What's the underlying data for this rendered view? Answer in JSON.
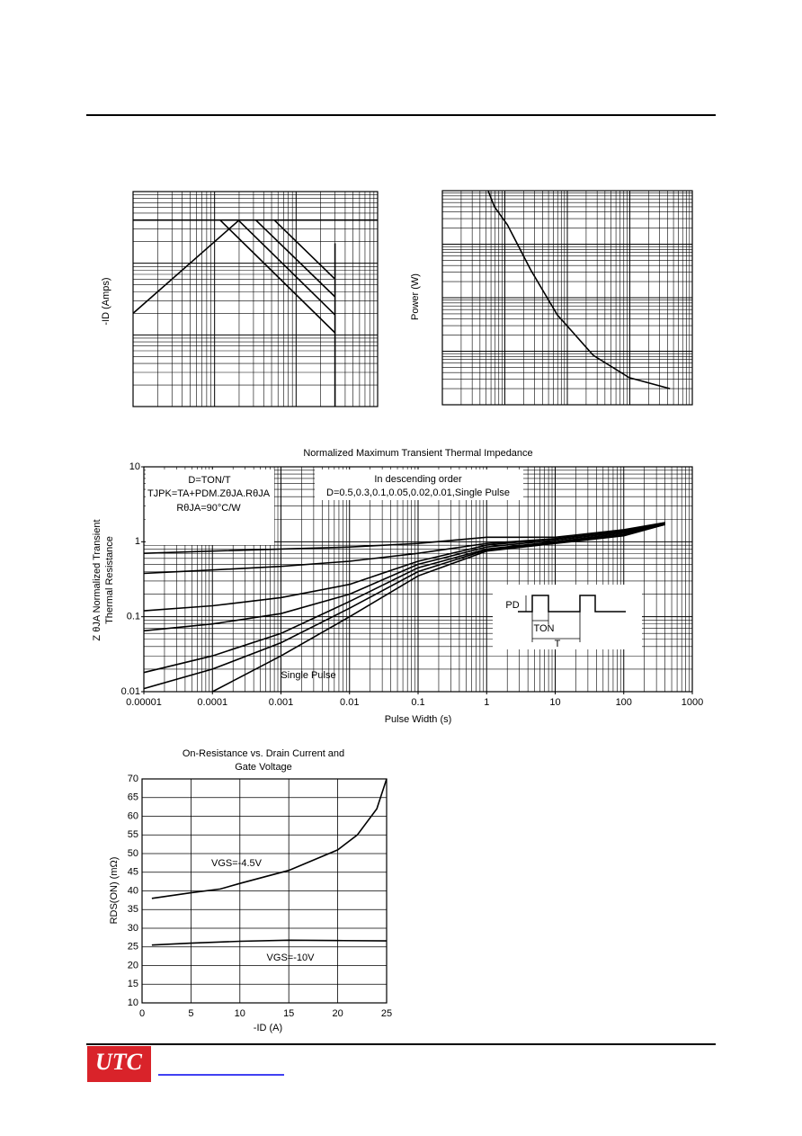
{
  "chart_data": [
    {
      "type": "line",
      "ylabel": "-ID (Amps)",
      "xlog": true,
      "ylog": true,
      "xlim": [
        0.1,
        100
      ],
      "ylim": [
        0.1,
        100
      ],
      "grid": true,
      "series": [
        {
          "color": "#000000",
          "x": [
            0.1,
            100
          ],
          "values": [
            40,
            40
          ]
        },
        {
          "color": "#000000",
          "x": [
            0.1,
            2
          ],
          "values": [
            2,
            40
          ]
        },
        {
          "color": "#000000",
          "x": [
            1.17,
            30
          ],
          "values": [
            40,
            1.07
          ]
        },
        {
          "color": "#000000",
          "x": [
            1.95,
            30
          ],
          "values": [
            40,
            1.9
          ]
        },
        {
          "color": "#000000",
          "x": [
            3.2,
            30
          ],
          "values": [
            40,
            3.4
          ]
        },
        {
          "color": "#000000",
          "x": [
            5.4,
            30
          ],
          "values": [
            40,
            6
          ]
        },
        {
          "color": "#000000",
          "x": [
            30,
            30
          ],
          "values": [
            0.1,
            19
          ]
        }
      ]
    },
    {
      "type": "line",
      "ylabel": "Power (W)",
      "xlog": true,
      "ylog": true,
      "xlim": [
        0.0001,
        1
      ],
      "ylim": [
        1,
        10000
      ],
      "grid": true,
      "series": [
        {
          "color": "#000000",
          "x": [
            0.00054,
            0.00068,
            0.0011,
            0.0026,
            0.0069,
            0.026,
            0.098,
            0.44
          ],
          "values": [
            10000,
            5000,
            2300,
            330,
            48,
            8.4,
            3.2,
            2.0
          ]
        }
      ]
    },
    {
      "type": "line",
      "title": [
        "Normalized Maximum Transient Thermal Impedance"
      ],
      "xlabel": "Pulse Width (s)",
      "ylabel": [
        "Z θJA Normalized Transient",
        "Thermal Resistance"
      ],
      "xlog": true,
      "ylog": true,
      "xlim": [
        1e-05,
        1000
      ],
      "ylim": [
        0.01,
        10
      ],
      "xticks": [
        1e-05,
        0.0001,
        0.001,
        0.01,
        0.1,
        1,
        10,
        100,
        1000
      ],
      "yticks": [
        0.01,
        0.1,
        1,
        10
      ],
      "grid": true,
      "annotations": [
        "D=TON/T",
        "TJPK=TA+PDM.ZθJA.RθJA",
        "RθJA=90°C/W",
        "In descending order",
        "D=0.5,0.3,0.1,0.05,0.02,0.01,Single Pulse",
        "Single Pulse",
        "PD",
        "TON",
        "T"
      ],
      "series": [
        {
          "color": "#000000",
          "x": [
            1e-05,
            0.0001,
            0.001,
            0.01,
            0.1,
            1,
            10,
            100,
            400
          ],
          "values": [
            0.7,
            0.75,
            0.8,
            0.85,
            0.95,
            1.15,
            1.15,
            1.45,
            1.8
          ]
        },
        {
          "color": "#000000",
          "x": [
            1e-05,
            0.0001,
            0.001,
            0.01,
            0.1,
            1,
            10,
            100,
            400
          ],
          "values": [
            0.38,
            0.42,
            0.47,
            0.55,
            0.7,
            0.95,
            1.1,
            1.4,
            1.8
          ]
        },
        {
          "color": "#000000",
          "x": [
            1e-05,
            0.0001,
            0.001,
            0.01,
            0.1,
            1,
            10,
            100,
            400
          ],
          "values": [
            0.12,
            0.14,
            0.18,
            0.27,
            0.55,
            0.9,
            1.1,
            1.4,
            1.75
          ]
        },
        {
          "color": "#000000",
          "x": [
            1e-05,
            0.0001,
            0.001,
            0.01,
            0.1,
            1,
            10,
            100,
            400
          ],
          "values": [
            0.065,
            0.08,
            0.11,
            0.2,
            0.5,
            0.85,
            1.05,
            1.35,
            1.75
          ]
        },
        {
          "color": "#000000",
          "x": [
            1e-05,
            0.0001,
            0.001,
            0.01,
            0.1,
            1,
            10,
            100,
            400
          ],
          "values": [
            0.018,
            0.03,
            0.06,
            0.16,
            0.45,
            0.8,
            1.0,
            1.3,
            1.7
          ]
        },
        {
          "color": "#000000",
          "x": [
            1e-05,
            0.0001,
            0.001,
            0.01,
            0.1,
            1,
            10,
            100,
            400
          ],
          "values": [
            0.011,
            0.02,
            0.045,
            0.13,
            0.4,
            0.78,
            0.97,
            1.25,
            1.7
          ]
        },
        {
          "color": "#000000",
          "x": [
            0.0001,
            0.001,
            0.01,
            0.1,
            1,
            10,
            100,
            400
          ],
          "values": [
            0.01,
            0.03,
            0.1,
            0.35,
            0.75,
            0.95,
            1.2,
            1.7
          ]
        }
      ]
    },
    {
      "type": "line",
      "title": [
        "On-Resistance vs. Drain Current and",
        "Gate Voltage"
      ],
      "xlabel": "-ID (A)",
      "ylabel": [
        "RDS(ON) (mΩ)"
      ],
      "xlim": [
        0,
        25
      ],
      "ylim": [
        10,
        70
      ],
      "xticks": [
        0,
        5,
        10,
        15,
        20,
        25
      ],
      "yticks": [
        10,
        15,
        20,
        25,
        30,
        35,
        40,
        45,
        50,
        55,
        60,
        65,
        70
      ],
      "grid": true,
      "annotations": [
        "VGS=-4.5V",
        "VGS=-10V"
      ],
      "series": [
        {
          "color": "#000000",
          "x": [
            1,
            5,
            8,
            10,
            15,
            20,
            22,
            24,
            25
          ],
          "values": [
            38,
            39.5,
            40.5,
            42,
            45.5,
            51,
            55,
            62,
            70
          ]
        },
        {
          "color": "#000000",
          "x": [
            1,
            5,
            10,
            15,
            20,
            25
          ],
          "values": [
            25.5,
            26,
            26.5,
            26.8,
            26.7,
            26.6
          ]
        }
      ]
    }
  ],
  "footer": {
    "logo": "UTC"
  }
}
